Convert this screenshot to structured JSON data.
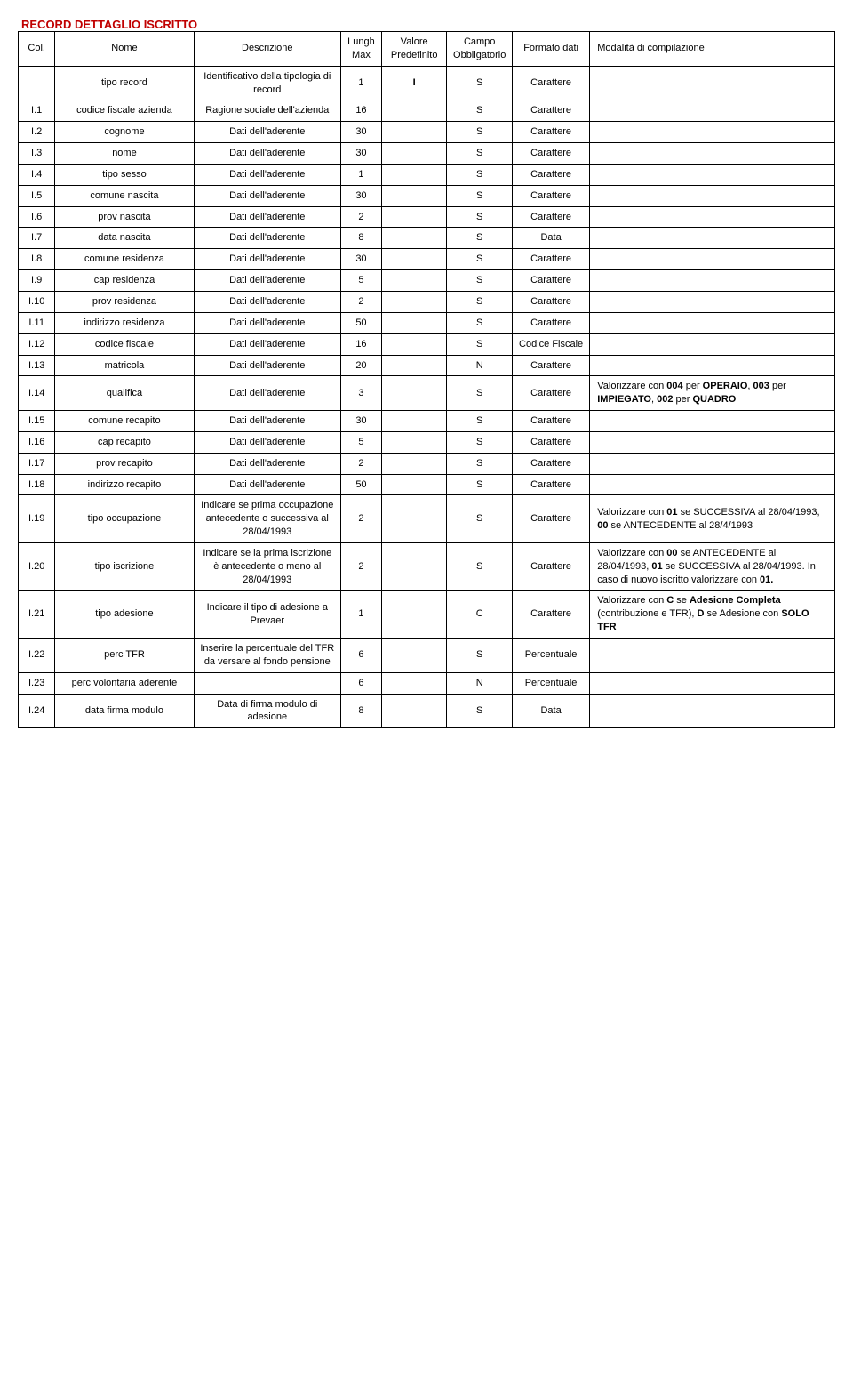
{
  "section_title": "RECORD DETTAGLIO ISCRITTO",
  "headers": {
    "col": "Col.",
    "nome": "Nome",
    "descrizione": "Descrizione",
    "lungh_max": "Lungh Max",
    "valore_predefinito": "Valore Predefinito",
    "campo_obbligatorio": "Campo Obbligatorio",
    "formato_dati": "Formato dati",
    "modalita": "Modalità di compilazione"
  },
  "rows": [
    {
      "col": "",
      "nome": "tipo record",
      "desc": "Identificativo della tipologia di record",
      "lungh": "1",
      "valore": "I",
      "valore_bold": true,
      "campo": "S",
      "formato": "Carattere",
      "modalita": ""
    },
    {
      "col": "I.1",
      "nome": "codice fiscale azienda",
      "desc": "Ragione sociale dell'azienda",
      "lungh": "16",
      "valore": "",
      "campo": "S",
      "formato": "Carattere",
      "modalita": ""
    },
    {
      "col": "I.2",
      "nome": "cognome",
      "desc": "Dati dell'aderente",
      "lungh": "30",
      "valore": "",
      "campo": "S",
      "formato": "Carattere",
      "modalita": ""
    },
    {
      "col": "I.3",
      "nome": "nome",
      "desc": "Dati dell'aderente",
      "lungh": "30",
      "valore": "",
      "campo": "S",
      "formato": "Carattere",
      "modalita": ""
    },
    {
      "col": "I.4",
      "nome": "tipo sesso",
      "desc": "Dati dell'aderente",
      "lungh": "1",
      "valore": "",
      "campo": "S",
      "formato": "Carattere",
      "modalita": ""
    },
    {
      "col": "I.5",
      "nome": "comune nascita",
      "desc": "Dati dell'aderente",
      "lungh": "30",
      "valore": "",
      "campo": "S",
      "formato": "Carattere",
      "modalita": ""
    },
    {
      "col": "I.6",
      "nome": "prov nascita",
      "desc": "Dati dell'aderente",
      "lungh": "2",
      "valore": "",
      "campo": "S",
      "formato": "Carattere",
      "modalita": ""
    },
    {
      "col": "I.7",
      "nome": "data nascita",
      "desc": "Dati dell'aderente",
      "lungh": "8",
      "valore": "",
      "campo": "S",
      "formato": "Data",
      "modalita": ""
    },
    {
      "col": "I.8",
      "nome": "comune residenza",
      "desc": "Dati dell'aderente",
      "lungh": "30",
      "valore": "",
      "campo": "S",
      "formato": "Carattere",
      "modalita": ""
    },
    {
      "col": "I.9",
      "nome": "cap residenza",
      "desc": "Dati dell'aderente",
      "lungh": "5",
      "valore": "",
      "campo": "S",
      "formato": "Carattere",
      "modalita": ""
    },
    {
      "col": "I.10",
      "nome": "prov residenza",
      "desc": "Dati dell'aderente",
      "lungh": "2",
      "valore": "",
      "campo": "S",
      "formato": "Carattere",
      "modalita": ""
    },
    {
      "col": "I.11",
      "nome": "indirizzo residenza",
      "desc": "Dati dell'aderente",
      "lungh": "50",
      "valore": "",
      "campo": "S",
      "formato": "Carattere",
      "modalita": ""
    },
    {
      "col": "I.12",
      "nome": "codice fiscale",
      "desc": "Dati dell'aderente",
      "lungh": "16",
      "valore": "",
      "campo": "S",
      "formato": "Codice Fiscale",
      "modalita": ""
    },
    {
      "col": "I.13",
      "nome": "matricola",
      "desc": "Dati dell'aderente",
      "lungh": "20",
      "valore": "",
      "campo": "N",
      "formato": "Carattere",
      "modalita": ""
    },
    {
      "col": "I.14",
      "nome": "qualifica",
      "desc": "Dati dell'aderente",
      "lungh": "3",
      "valore": "",
      "campo": "S",
      "formato": "Carattere",
      "modalita_html": "Valorizzare con <b>004</b> per <b>OPERAIO</b>, <b>003</b> per <b>IMPIEGATO</b>, <b>002</b> per <b>QUADRO</b>"
    },
    {
      "col": "I.15",
      "nome": "comune recapito",
      "desc": "Dati dell'aderente",
      "lungh": "30",
      "valore": "",
      "campo": "S",
      "formato": "Carattere",
      "modalita": ""
    },
    {
      "col": "I.16",
      "nome": "cap recapito",
      "desc": "Dati dell'aderente",
      "lungh": "5",
      "valore": "",
      "campo": "S",
      "formato": "Carattere",
      "modalita": ""
    },
    {
      "col": "I.17",
      "nome": "prov recapito",
      "desc": "Dati dell'aderente",
      "lungh": "2",
      "valore": "",
      "campo": "S",
      "formato": "Carattere",
      "modalita": ""
    },
    {
      "col": "I.18",
      "nome": "indirizzo recapito",
      "desc": "Dati dell'aderente",
      "lungh": "50",
      "valore": "",
      "campo": "S",
      "formato": "Carattere",
      "modalita": ""
    },
    {
      "col": "I.19",
      "nome": "tipo occupazione",
      "desc": "Indicare se prima occupazione antecedente o successiva al 28/04/1993",
      "lungh": "2",
      "valore": "",
      "campo": "S",
      "formato": "Carattere",
      "modalita_html": "Valorizzare con <b>01</b> se SUCCESSIVA al 28/04/1993, <b>00</b> se ANTECEDENTE al 28/4/1993"
    },
    {
      "col": "I.20",
      "nome": "tipo iscrizione",
      "desc": "Indicare se la prima iscrizione è antecedente o meno al 28/04/1993",
      "lungh": "2",
      "valore": "",
      "campo": "S",
      "formato": "Carattere",
      "modalita_html": "Valorizzare con <b>00</b> se ANTECEDENTE al 28/04/1993, <b>01</b> se SUCCESSIVA al 28/04/1993. In caso di nuovo iscritto valorizzare con <b>01.</b>"
    },
    {
      "col": "I.21",
      "nome": "tipo adesione",
      "desc": "Indicare il tipo di adesione a Prevaer",
      "lungh": "1",
      "valore": "",
      "campo": "C",
      "formato": "Carattere",
      "modalita_html": "Valorizzare con <b>C</b> se <b>Adesione Completa</b> (contribuzione e TFR), <b>D</b> se Adesione con <b>SOLO TFR</b>"
    },
    {
      "col": "I.22",
      "nome": "perc TFR",
      "desc": "Inserire la percentuale del TFR da versare al fondo pensione",
      "lungh": "6",
      "valore": "",
      "campo": "S",
      "formato": "Percentuale",
      "modalita": ""
    },
    {
      "col": "I.23",
      "nome": "perc volontaria aderente",
      "desc": "",
      "lungh": "6",
      "valore": "",
      "campo": "N",
      "formato": "Percentuale",
      "modalita": ""
    },
    {
      "col": "I.24",
      "nome": "data firma modulo",
      "desc": "Data di firma modulo di adesione",
      "lungh": "8",
      "valore": "",
      "campo": "S",
      "formato": "Data",
      "modalita": ""
    }
  ]
}
